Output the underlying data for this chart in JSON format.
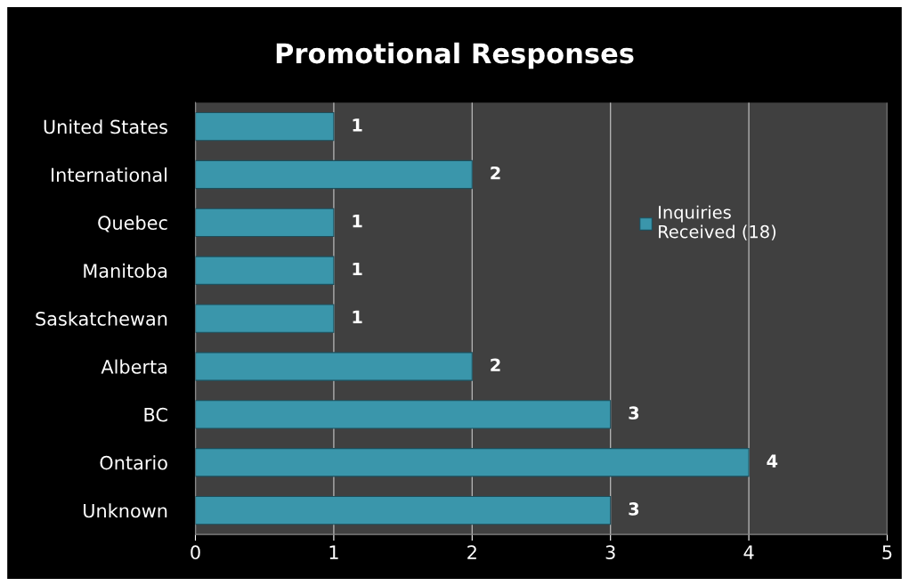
{
  "chart_data": {
    "type": "bar",
    "orientation": "horizontal",
    "title": "Promotional Responses",
    "categories": [
      "United States",
      "International",
      "Quebec",
      "Manitoba",
      "Saskatchewan",
      "Alberta",
      "BC",
      "Ontario",
      "Unknown"
    ],
    "series": [
      {
        "name": "Inquiries Received (18)",
        "color": "#3a96ab",
        "values": [
          1,
          2,
          1,
          1,
          1,
          2,
          3,
          4,
          3
        ]
      }
    ],
    "xlim": [
      0,
      5
    ],
    "xticks": [
      0,
      1,
      2,
      3,
      4,
      5
    ],
    "grid": "x",
    "data_labels": true,
    "legend": "right"
  }
}
